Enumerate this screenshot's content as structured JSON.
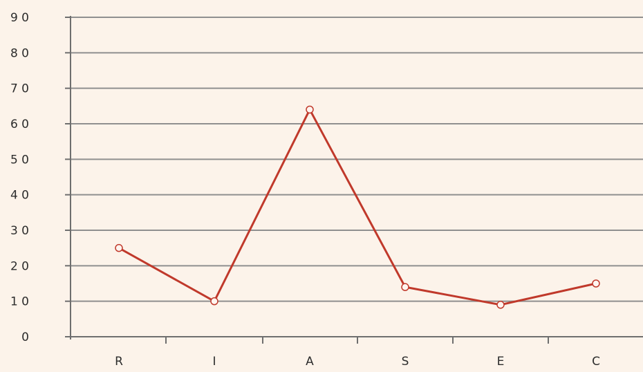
{
  "chart_data": {
    "type": "line",
    "title": "",
    "xlabel": "",
    "ylabel": "",
    "categories": [
      "R",
      "I",
      "A",
      "S",
      "E",
      "C"
    ],
    "y_tick_labels": [
      "0",
      "1 0",
      "2 0",
      "3 0",
      "4 0",
      "5 0",
      "6 0",
      "7 0",
      "8 0",
      "9 0"
    ],
    "y_ticks": [
      0,
      10,
      20,
      30,
      40,
      50,
      60,
      70,
      80,
      90
    ],
    "ylim": [
      0,
      90
    ],
    "grid": true,
    "series": [
      {
        "values": [
          25,
          10,
          64,
          14,
          9,
          15
        ]
      }
    ],
    "colors": {
      "background": "#fcf3ea",
      "grid": "#8f8f8f",
      "axis": "#6e6e6e",
      "line": "#c0392b",
      "marker_fill": "#fff5f0"
    }
  }
}
